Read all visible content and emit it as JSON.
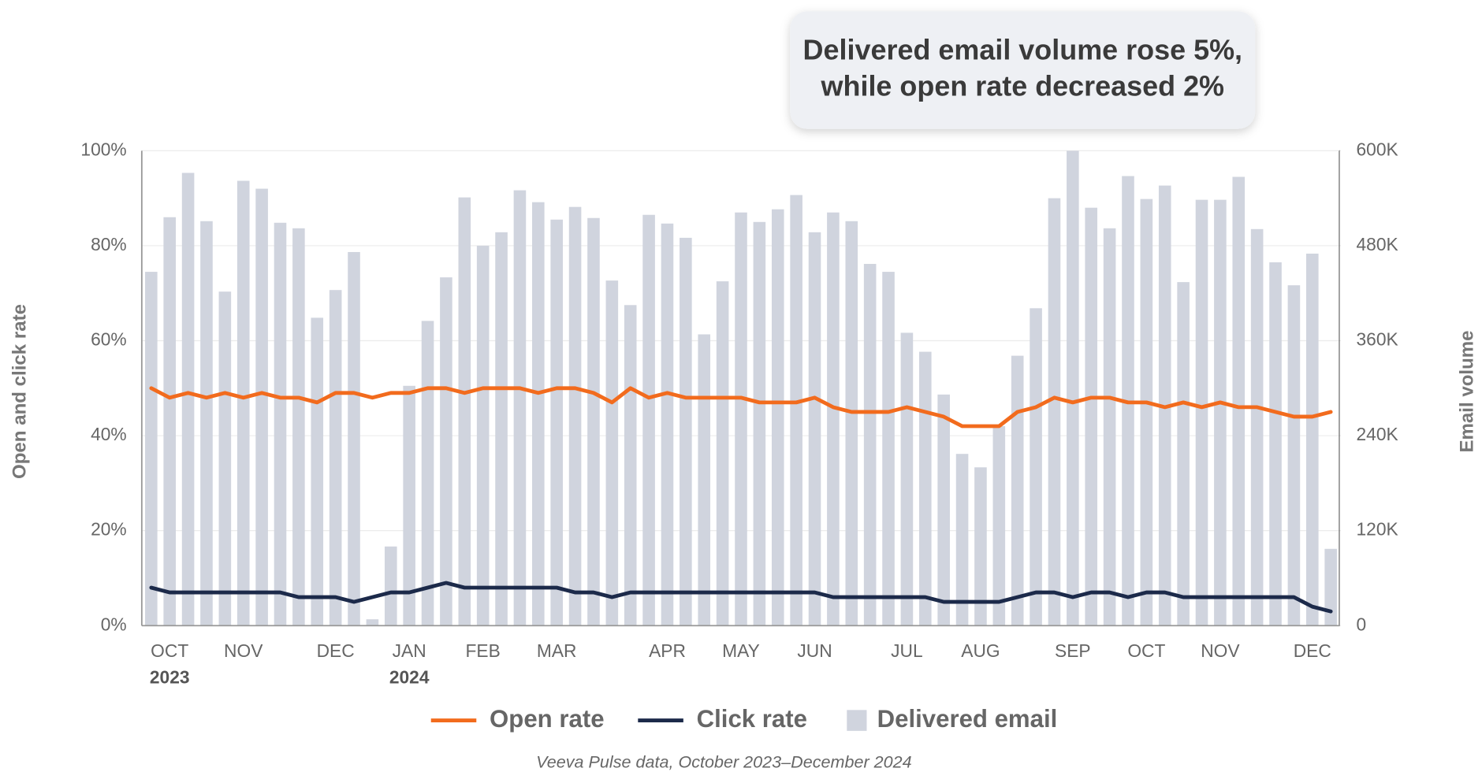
{
  "chart_data": {
    "type": "combo",
    "annotation": [
      "Delivered email volume rose 5%,",
      "while open rate decreased 2%"
    ],
    "y_label": "Open and click rate",
    "y2_label": "Email volume",
    "source": "Veeva Pulse data, October 2023–December 2024",
    "categories": [
      null,
      "OCT",
      null,
      null,
      null,
      "NOV",
      null,
      null,
      null,
      null,
      "DEC",
      null,
      null,
      null,
      "JAN",
      null,
      null,
      null,
      "FEB",
      null,
      null,
      null,
      "MAR",
      null,
      null,
      null,
      null,
      null,
      "APR",
      null,
      null,
      null,
      "MAY",
      null,
      null,
      null,
      "JUN",
      null,
      null,
      null,
      null,
      "JUL",
      null,
      null,
      null,
      "AUG",
      null,
      null,
      null,
      null,
      "SEP",
      null,
      null,
      null,
      "OCT",
      null,
      null,
      null,
      "NOV",
      null,
      null,
      null,
      null,
      "DEC",
      null
    ],
    "years": [
      null,
      "2023",
      null,
      null,
      null,
      null,
      null,
      null,
      null,
      null,
      null,
      null,
      null,
      null,
      "2024",
      null,
      null,
      null,
      null,
      null,
      null,
      null,
      null,
      null,
      null,
      null,
      null,
      null,
      null,
      null,
      null,
      null,
      null,
      null,
      null,
      null,
      null,
      null,
      null,
      null,
      null,
      null,
      null,
      null,
      null,
      null,
      null,
      null,
      null,
      null,
      null,
      null,
      null,
      null,
      null,
      null,
      null,
      null,
      null,
      null,
      null,
      null,
      null,
      null,
      null
    ],
    "series": [
      {
        "name": "Open rate",
        "type": "line",
        "color": "#f26b1d",
        "values": [
          50,
          48,
          49,
          48,
          49,
          48,
          49,
          48,
          48,
          47,
          49,
          49,
          48,
          49,
          49,
          50,
          50,
          49,
          50,
          50,
          50,
          49,
          50,
          50,
          49,
          47,
          50,
          48,
          49,
          48,
          48,
          48,
          48,
          47,
          47,
          47,
          48,
          46,
          45,
          45,
          45,
          46,
          45,
          44,
          42,
          42,
          42,
          45,
          46,
          48,
          47,
          48,
          48,
          47,
          47,
          46,
          47,
          46,
          47,
          46,
          46,
          45,
          44,
          44,
          45
        ]
      },
      {
        "name": "Click rate",
        "type": "line",
        "color": "#1c2a4a",
        "values": [
          8,
          7,
          7,
          7,
          7,
          7,
          7,
          7,
          6,
          6,
          6,
          5,
          6,
          7,
          7,
          8,
          9,
          8,
          8,
          8,
          8,
          8,
          8,
          7,
          7,
          6,
          7,
          7,
          7,
          7,
          7,
          7,
          7,
          7,
          7,
          7,
          7,
          6,
          6,
          6,
          6,
          6,
          6,
          5,
          5,
          5,
          5,
          6,
          7,
          7,
          6,
          7,
          7,
          6,
          7,
          7,
          6,
          6,
          6,
          6,
          6,
          6,
          6,
          4,
          3
        ]
      },
      {
        "name": "Delivered email",
        "type": "bar",
        "color": "#d0d4de",
        "axis": "y2",
        "values": [
          447000,
          516000,
          572000,
          511000,
          422000,
          562000,
          552000,
          509000,
          502000,
          389000,
          424000,
          472000,
          8000,
          100000,
          303000,
          385000,
          440000,
          541000,
          480000,
          497000,
          550000,
          535000,
          513000,
          529000,
          515000,
          436000,
          405000,
          519000,
          508000,
          490000,
          368000,
          435000,
          522000,
          510000,
          526000,
          544000,
          497000,
          522000,
          511000,
          457000,
          447000,
          370000,
          346000,
          292000,
          217000,
          200000,
          252000,
          341000,
          401000,
          540000,
          600000,
          528000,
          502000,
          568000,
          539000,
          556000,
          434000,
          538000,
          538000,
          567000,
          501000,
          459000,
          430000,
          470000,
          97000
        ]
      }
    ],
    "ylim": [
      0,
      100
    ],
    "yticks": [
      {
        "value": 0,
        "label": "0%"
      },
      {
        "value": 20,
        "label": "20%"
      },
      {
        "value": 40,
        "label": "40%"
      },
      {
        "value": 60,
        "label": "60%"
      },
      {
        "value": 80,
        "label": "80%"
      },
      {
        "value": 100,
        "label": "100%"
      }
    ],
    "y2lim": [
      0,
      600000
    ],
    "y2ticks": [
      0,
      {
        "value": 120000,
        "label": "120K"
      },
      {
        "value": 240000,
        "label": "240K"
      },
      {
        "value": 360000,
        "label": "360K"
      },
      {
        "value": 480000,
        "label": "480K"
      },
      {
        "value": 600000,
        "label": "600K"
      }
    ],
    "grid": true
  }
}
